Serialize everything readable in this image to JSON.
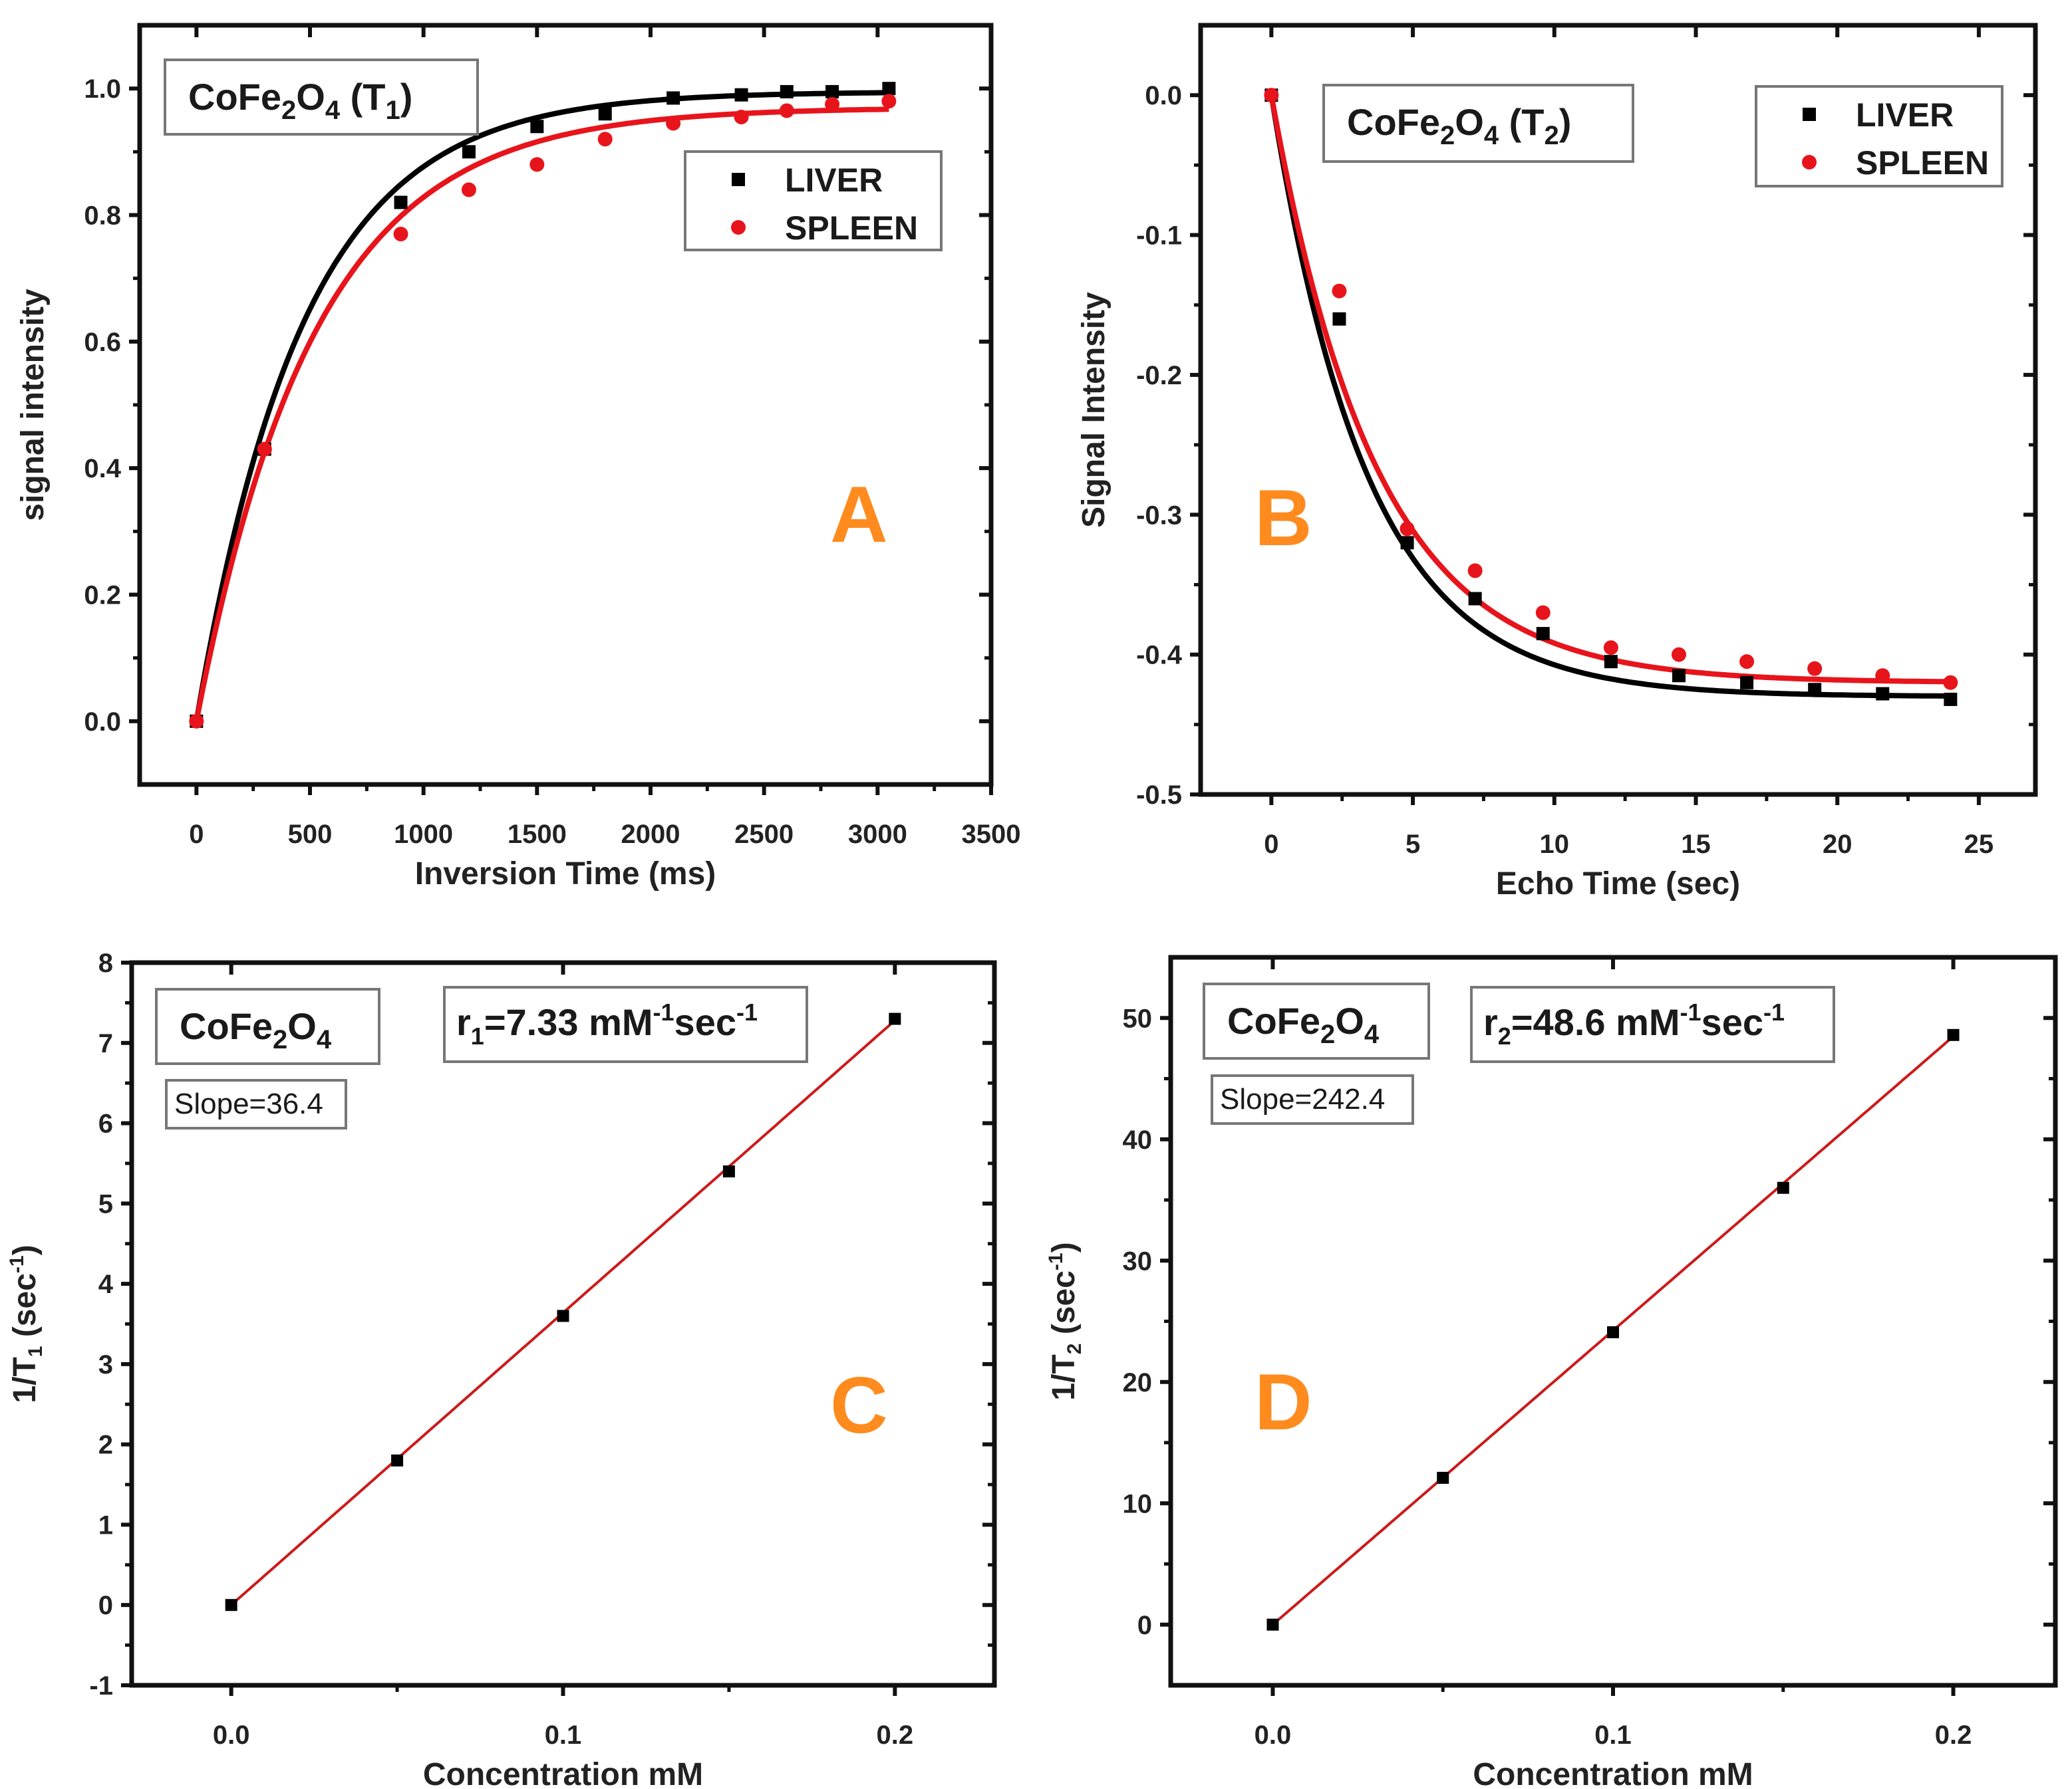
{
  "colors": {
    "liver": "#000000",
    "spleen": "#e8141b",
    "fit_line": "#cc1a1a",
    "panel_letter": "#ff8a1e",
    "axis": "#111111"
  },
  "chart_data": [
    {
      "id": "A",
      "type": "scatter",
      "panel_letter": "A",
      "title_box": {
        "main": "CoFe",
        "sub1": "2",
        "mid": "O",
        "sub2": "4",
        "tail_open": " (T",
        "tail_sub": "1",
        "tail_close": ")"
      },
      "xlabel": "Inversion Time (ms)",
      "ylabel": "signal intensity",
      "xlim": [
        -250,
        3500
      ],
      "ylim": [
        -0.1,
        1.1
      ],
      "xticks": [
        0,
        500,
        1000,
        1500,
        2000,
        2500,
        3000,
        3500
      ],
      "xtick_labels": [
        "0",
        "500",
        "1000",
        "1500",
        "2000",
        "2500",
        "3000",
        "3500"
      ],
      "yticks": [
        0.0,
        0.2,
        0.4,
        0.6,
        0.8,
        1.0
      ],
      "ytick_labels": [
        "0.0",
        "0.2",
        "0.4",
        "0.6",
        "0.8",
        "1.0"
      ],
      "legend": [
        {
          "label": "LIVER",
          "marker": "square"
        },
        {
          "label": "SPLEEN",
          "marker": "circle"
        }
      ],
      "series": [
        {
          "name": "LIVER",
          "marker": "square",
          "x": [
            0,
            300,
            900,
            1200,
            1500,
            1800,
            2100,
            2400,
            2600,
            2800,
            3050
          ],
          "y": [
            0.0,
            0.43,
            0.82,
            0.9,
            0.94,
            0.96,
            0.985,
            0.99,
            0.995,
            0.995,
            1.0
          ],
          "fit": {
            "model": "saturation",
            "A": 0.995,
            "tau": 470
          }
        },
        {
          "name": "SPLEEN",
          "marker": "circle",
          "x": [
            0,
            300,
            900,
            1200,
            1500,
            1800,
            2100,
            2400,
            2600,
            2800,
            3050
          ],
          "y": [
            0.0,
            0.43,
            0.77,
            0.84,
            0.88,
            0.92,
            0.945,
            0.955,
            0.965,
            0.975,
            0.98
          ],
          "fit": {
            "model": "saturation",
            "A": 0.97,
            "tau": 520
          }
        }
      ]
    },
    {
      "id": "B",
      "type": "scatter",
      "panel_letter": "B",
      "title_box": {
        "main": "CoFe",
        "sub1": "2",
        "mid": "O",
        "sub2": "4",
        "tail_open": " (T",
        "tail_sub": "2",
        "tail_close": ")"
      },
      "xlabel": "Echo Time (sec)",
      "ylabel": "Signal Intensity",
      "xlim": [
        -2.5,
        27
      ],
      "ylim": [
        -0.5,
        0.05
      ],
      "xticks": [
        0,
        5,
        10,
        15,
        20,
        25
      ],
      "xtick_labels": [
        "0",
        "5",
        "10",
        "15",
        "20",
        "25"
      ],
      "yticks": [
        0.0,
        -0.1,
        -0.2,
        -0.3,
        -0.4,
        -0.5
      ],
      "ytick_labels": [
        "0.0",
        "-0.1",
        "-0.2",
        "-0.3",
        "-0.4",
        "-0.5"
      ],
      "legend": [
        {
          "label": "LIVER",
          "marker": "square"
        },
        {
          "label": "SPLEEN",
          "marker": "circle"
        }
      ],
      "series": [
        {
          "name": "LIVER",
          "marker": "square",
          "x": [
            0,
            2.4,
            4.8,
            7.2,
            9.6,
            12,
            14.4,
            16.8,
            19.2,
            21.6,
            24
          ],
          "y": [
            0.0,
            -0.16,
            -0.32,
            -0.36,
            -0.385,
            -0.405,
            -0.415,
            -0.42,
            -0.425,
            -0.428,
            -0.432
          ],
          "fit": {
            "model": "decay",
            "Ainf": -0.43,
            "tau": 3.4
          }
        },
        {
          "name": "SPLEEN",
          "marker": "circle",
          "x": [
            0,
            2.4,
            4.8,
            7.2,
            9.6,
            12,
            14.4,
            16.8,
            19.2,
            21.6,
            24
          ],
          "y": [
            0.0,
            -0.14,
            -0.31,
            -0.34,
            -0.37,
            -0.395,
            -0.4,
            -0.405,
            -0.41,
            -0.415,
            -0.42
          ],
          "fit": {
            "model": "decay",
            "Ainf": -0.42,
            "tau": 3.7
          }
        }
      ]
    },
    {
      "id": "C",
      "type": "scatter",
      "panel_letter": "C",
      "title_box": {
        "main": "CoFe",
        "sub1": "2",
        "mid": "O",
        "sub2": "4"
      },
      "rate_box": {
        "prefix": "r",
        "prefix_sub": "1",
        "value": "=7.33 mM",
        "exp1": "-1",
        "unit": "sec",
        "exp2": "-1"
      },
      "slope_box": "Slope=36.4",
      "xlabel": "Concentration mM",
      "ylabel_main": "1/T",
      "ylabel_sub": "1",
      "ylabel_tail": " (sec",
      "ylabel_exp": "-1",
      "ylabel_close": ")",
      "xlim": [
        -0.03,
        0.23
      ],
      "ylim": [
        -1,
        8
      ],
      "xticks": [
        0.0,
        0.1,
        0.2
      ],
      "xtick_labels": [
        "0.0",
        "0.1",
        "0.2"
      ],
      "yticks": [
        -1,
        0,
        1,
        2,
        3,
        4,
        5,
        6,
        7,
        8
      ],
      "ytick_labels": [
        "-1",
        "0",
        "1",
        "2",
        "3",
        "4",
        "5",
        "6",
        "7",
        "8"
      ],
      "series": [
        {
          "name": "data",
          "marker": "square",
          "x": [
            0.0,
            0.05,
            0.1,
            0.15,
            0.2
          ],
          "y": [
            0.0,
            1.8,
            3.6,
            5.4,
            7.3
          ],
          "fit": {
            "model": "linear",
            "slope": 36.4,
            "intercept": 0.0
          }
        }
      ]
    },
    {
      "id": "D",
      "type": "scatter",
      "panel_letter": "D",
      "title_box": {
        "main": "CoFe",
        "sub1": "2",
        "mid": "O",
        "sub2": "4"
      },
      "rate_box": {
        "prefix": "r",
        "prefix_sub": "2",
        "value": "=48.6 mM",
        "exp1": "-1",
        "unit": "sec",
        "exp2": "-1"
      },
      "slope_box": "Slope=242.4",
      "xlabel": "Concentration mM",
      "ylabel_main": "1/T",
      "ylabel_sub": "2",
      "ylabel_tail": " (sec",
      "ylabel_exp": "-1",
      "ylabel_close": ")",
      "xlim": [
        -0.03,
        0.23
      ],
      "ylim": [
        -5,
        55
      ],
      "xticks": [
        0.0,
        0.1,
        0.2
      ],
      "xtick_labels": [
        "0.0",
        "0.1",
        "0.2"
      ],
      "yticks": [
        0,
        10,
        20,
        30,
        40,
        50
      ],
      "ytick_labels": [
        "0",
        "10",
        "20",
        "30",
        "40",
        "50"
      ],
      "series": [
        {
          "name": "data",
          "marker": "square",
          "x": [
            0.0,
            0.05,
            0.1,
            0.15,
            0.2
          ],
          "y": [
            0.0,
            12.1,
            24.1,
            36.0,
            48.6
          ],
          "fit": {
            "model": "linear",
            "slope": 242.4,
            "intercept": 0.0
          }
        }
      ]
    }
  ]
}
